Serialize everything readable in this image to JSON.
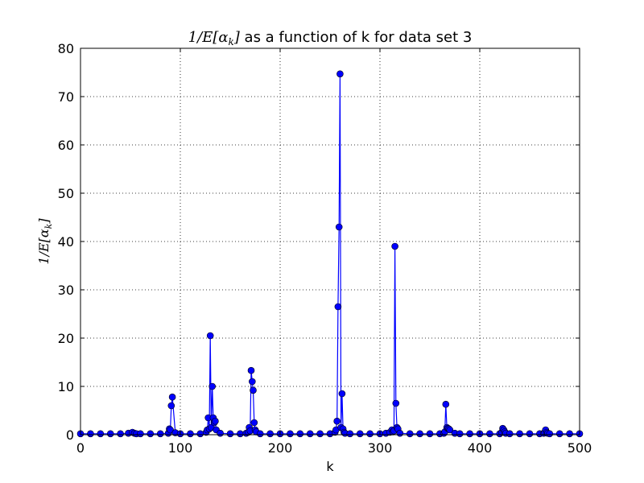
{
  "chart_data": {
    "type": "line",
    "title_math": "1/E[α",
    "title_math_sub": "k",
    "title_math_close": "]",
    "title_text": " as a function of k for data set 3",
    "xlabel": "k",
    "ylabel_math": "1/E[α",
    "ylabel_math_sub": "k",
    "ylabel_math_close": "]",
    "xlim": [
      0,
      500
    ],
    "ylim": [
      0,
      80
    ],
    "xticks": [
      0,
      100,
      200,
      300,
      400,
      500
    ],
    "yticks": [
      0,
      10,
      20,
      30,
      40,
      50,
      60,
      70,
      80
    ],
    "grid": true,
    "marker": "circle",
    "series_color": "#0000ff",
    "x": [
      0,
      10,
      20,
      30,
      40,
      48,
      52,
      54,
      56,
      60,
      70,
      80,
      88,
      89,
      90,
      91,
      92,
      95,
      100,
      110,
      120,
      126,
      127,
      128,
      129,
      130,
      131,
      132,
      133,
      134,
      135,
      136,
      140,
      150,
      160,
      166,
      168,
      169,
      170,
      171,
      172,
      173,
      174,
      175,
      176,
      180,
      190,
      200,
      210,
      220,
      230,
      240,
      250,
      255,
      256,
      257,
      258,
      259,
      260,
      261,
      262,
      263,
      264,
      265,
      270,
      280,
      290,
      300,
      306,
      310,
      312,
      313,
      314,
      315,
      316,
      317,
      318,
      320,
      330,
      340,
      350,
      360,
      364,
      365,
      366,
      367,
      368,
      369,
      370,
      375,
      380,
      390,
      400,
      410,
      420,
      422,
      423,
      424,
      425,
      426,
      430,
      440,
      450,
      460,
      464,
      465,
      466,
      467,
      468,
      470,
      480,
      490,
      500
    ],
    "values": [
      0.2,
      0.2,
      0.2,
      0.2,
      0.2,
      0.3,
      0.5,
      0.3,
      0.2,
      0.2,
      0.2,
      0.2,
      0.3,
      1.2,
      1.0,
      6.0,
      7.8,
      0.4,
      0.2,
      0.2,
      0.2,
      0.5,
      1.0,
      3.5,
      1.2,
      20.5,
      1.5,
      10.0,
      3.5,
      2.5,
      2.8,
      1.0,
      0.3,
      0.2,
      0.2,
      0.3,
      0.5,
      1.5,
      0.8,
      13.3,
      11.0,
      9.2,
      2.5,
      1.0,
      0.6,
      0.2,
      0.2,
      0.2,
      0.2,
      0.2,
      0.2,
      0.2,
      0.2,
      0.5,
      1.0,
      2.8,
      26.5,
      43.0,
      74.7,
      1.5,
      8.5,
      1.2,
      0.5,
      0.3,
      0.2,
      0.2,
      0.2,
      0.2,
      0.3,
      0.5,
      1.0,
      0.6,
      0.8,
      39.0,
      6.5,
      1.5,
      1.2,
      0.3,
      0.2,
      0.2,
      0.2,
      0.2,
      0.3,
      0.6,
      6.3,
      1.5,
      1.3,
      1.2,
      1.0,
      0.3,
      0.2,
      0.2,
      0.2,
      0.2,
      0.2,
      0.5,
      1.3,
      1.0,
      0.6,
      0.3,
      0.2,
      0.2,
      0.2,
      0.2,
      0.3,
      0.5,
      1.0,
      0.5,
      0.3,
      0.2,
      0.2,
      0.2,
      0.2
    ]
  }
}
